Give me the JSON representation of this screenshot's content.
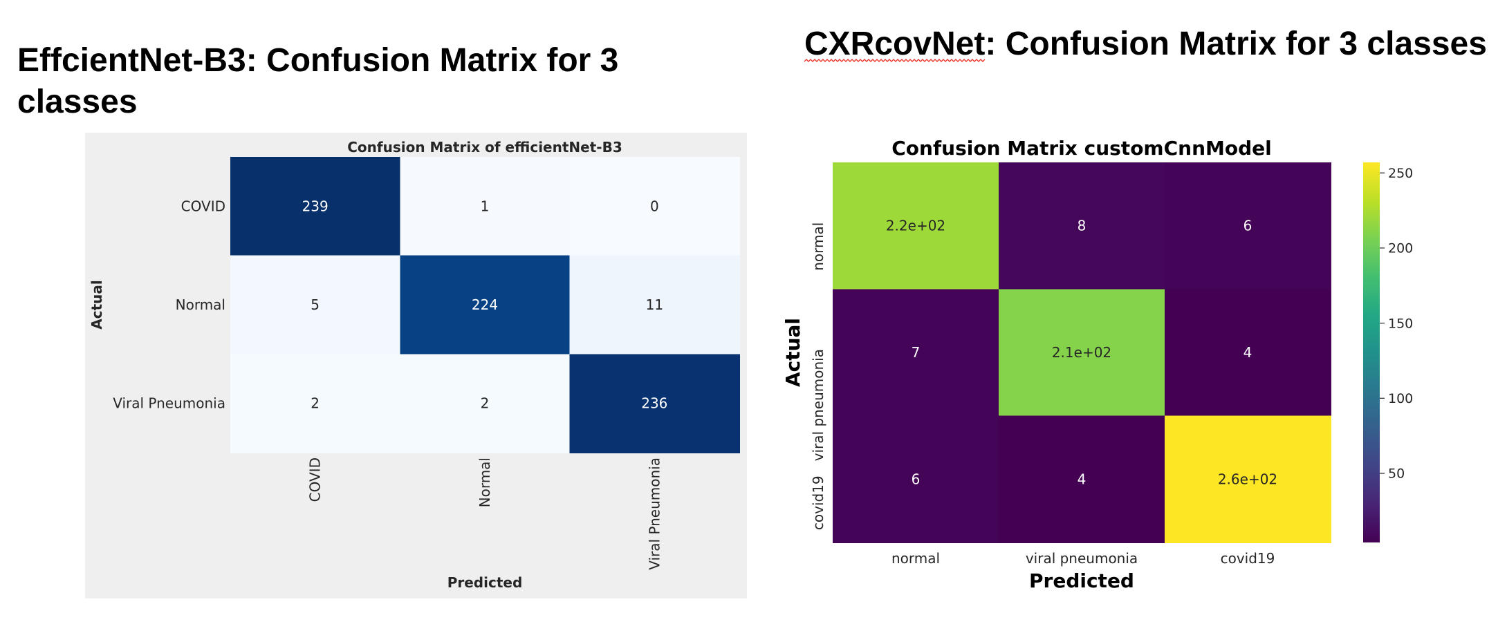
{
  "figure": {
    "left_heading": "EffcientNet-B3: Confusion Matrix for 3 classes",
    "right_heading": "CXRcovNet: Confusion Matrix for 3 classes"
  },
  "chart_data": [
    {
      "type": "heatmap",
      "title": "Confusion Matrix of efficientNet-B3",
      "xlabel": "Predicted",
      "ylabel": "Actual",
      "x_categories": [
        "COVID",
        "Normal",
        "Viral Pneumonia"
      ],
      "y_categories": [
        "COVID",
        "Normal",
        "Viral Pneumonia"
      ],
      "values": [
        [
          239,
          1,
          0
        ],
        [
          5,
          224,
          11
        ],
        [
          2,
          2,
          236
        ]
      ],
      "annotations": [
        [
          "239",
          "1",
          "0"
        ],
        [
          "5",
          "224",
          "11"
        ],
        [
          "2",
          "2",
          "236"
        ]
      ],
      "zlim": [
        0,
        239
      ],
      "color_scale": [
        "#f7fbff",
        "#deebf7",
        "#c6dbef",
        "#9ecae1",
        "#6baed6",
        "#4292c6",
        "#2171b5",
        "#08519c",
        "#08306b"
      ],
      "background": "#efefef",
      "colorbar": false
    },
    {
      "type": "heatmap",
      "title": "Confusion Matrix customCnnModel",
      "xlabel": "Predicted",
      "ylabel": "Actual",
      "x_categories": [
        "normal",
        "viral pneumonia",
        "covid19"
      ],
      "y_categories": [
        "normal",
        "viral pneumonia",
        "covid19"
      ],
      "values": [
        [
          220,
          8,
          6
        ],
        [
          7,
          210,
          4
        ],
        [
          6,
          4,
          260
        ]
      ],
      "annotations": [
        [
          "2.2e+02",
          "8",
          "6"
        ],
        [
          "7",
          "2.1e+02",
          "4"
        ],
        [
          "6",
          "4",
          "2.6e+02"
        ]
      ],
      "zlim": [
        4,
        257
      ],
      "color_scale": [
        "#440154",
        "#482475",
        "#414487",
        "#355f8d",
        "#2a788e",
        "#21918c",
        "#22a884",
        "#44bf70",
        "#7ad151",
        "#bddf26",
        "#fde725"
      ],
      "colorbar": true,
      "colorbar_ticks": [
        50,
        100,
        150,
        200,
        250
      ]
    }
  ]
}
